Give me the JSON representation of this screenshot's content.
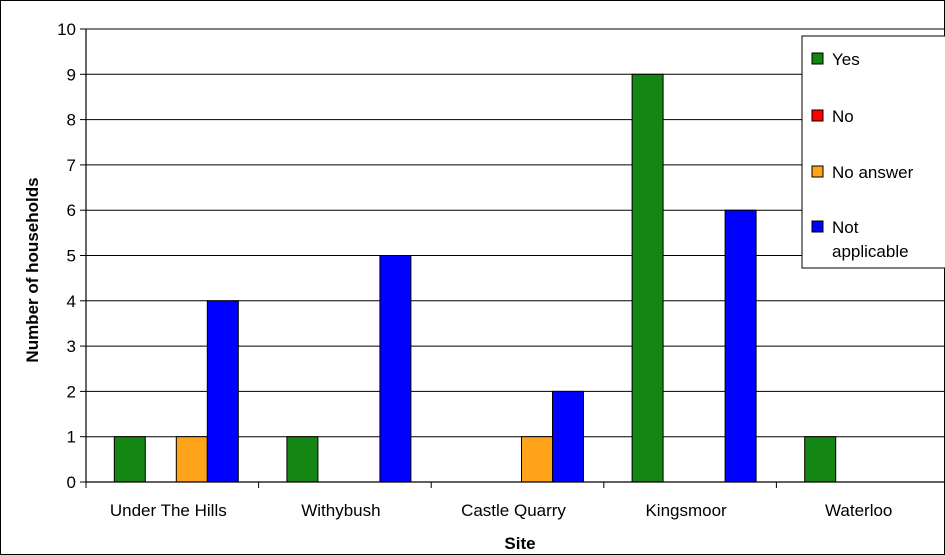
{
  "chart_data": {
    "type": "bar",
    "title": "",
    "xlabel": "Site",
    "ylabel": "Number of households",
    "categories": [
      "Under The Hills",
      "Withybush",
      "Castle Quarry",
      "Kingsmoor",
      "Waterloo"
    ],
    "series": [
      {
        "name": "Yes",
        "color": "#138613",
        "values": [
          1,
          1,
          0,
          9,
          1
        ]
      },
      {
        "name": "No",
        "color": "#ff0000",
        "values": [
          0,
          0,
          0,
          0,
          0
        ]
      },
      {
        "name": "No answer",
        "color": "#ffa31a",
        "values": [
          1,
          0,
          1,
          0,
          0
        ]
      },
      {
        "name": "Not applicable",
        "color": "#0000ff",
        "values": [
          4,
          5,
          2,
          6,
          0
        ]
      }
    ],
    "ylim": [
      0,
      10
    ],
    "yticks": [
      0,
      1,
      2,
      3,
      4,
      5,
      6,
      7,
      8,
      9,
      10
    ],
    "grid": true,
    "legend": "right"
  }
}
